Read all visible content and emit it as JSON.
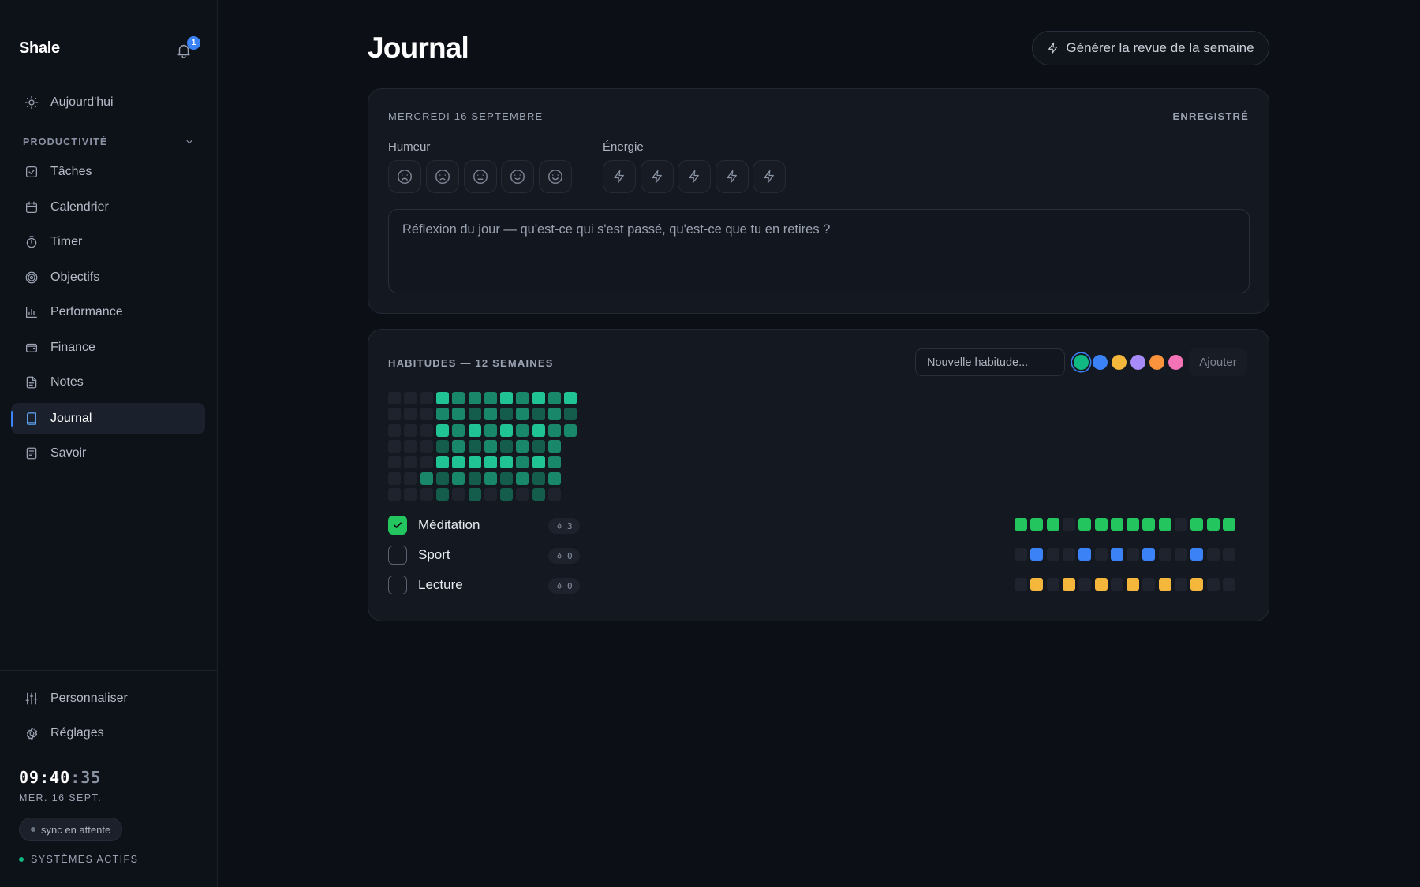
{
  "app": {
    "brand": "Shale",
    "notification_count": "1"
  },
  "sidebar": {
    "today": "Aujourd'hui",
    "section": "PRODUCTIVITÉ",
    "items": [
      {
        "label": "Tâches",
        "icon": "check-square-icon"
      },
      {
        "label": "Calendrier",
        "icon": "calendar-icon"
      },
      {
        "label": "Timer",
        "icon": "timer-icon"
      },
      {
        "label": "Objectifs",
        "icon": "target-icon"
      },
      {
        "label": "Performance",
        "icon": "bar-chart-icon"
      },
      {
        "label": "Finance",
        "icon": "wallet-icon"
      },
      {
        "label": "Notes",
        "icon": "file-text-icon"
      },
      {
        "label": "Journal",
        "icon": "book-icon",
        "active": true
      },
      {
        "label": "Savoir",
        "icon": "book-open-icon"
      }
    ],
    "customize": "Personnaliser",
    "settings": "Réglages",
    "clock_hm": "09:40",
    "clock_sec": ":35",
    "clock_date": "MER. 16 SEPT.",
    "sync": "sync en attente",
    "systems": "SYSTÈMES ACTIFS"
  },
  "main": {
    "title": "Journal",
    "generate_button": "Générer la revue de la semaine",
    "entry": {
      "date": "MERCREDI 16 SEPTEMBRE",
      "status": "ENREGISTRÉ",
      "mood_label": "Humeur",
      "energy_label": "Énergie",
      "reflection_placeholder": "Réflexion du jour — qu'est-ce qui s'est passé, qu'est-ce que tu en retires ?"
    },
    "habits": {
      "title": "HABITUDES — 12 SEMAINES",
      "new_placeholder": "Nouvelle habitude...",
      "add_button": "Ajouter",
      "colors": [
        "#10b981",
        "#3b82f6",
        "#f5b73b",
        "#a78bfa",
        "#fb923c",
        "#f472b6"
      ],
      "list": [
        {
          "name": "Méditation",
          "done": true,
          "streak": "3",
          "color": "#22c55e",
          "history": [
            1,
            1,
            1,
            0,
            1,
            1,
            1,
            1,
            1,
            1,
            0,
            1,
            1,
            1
          ]
        },
        {
          "name": "Sport",
          "done": false,
          "streak": "0",
          "color": "#3b82f6",
          "history": [
            0,
            1,
            0,
            0,
            1,
            0,
            1,
            0,
            1,
            0,
            0,
            1,
            0,
            0
          ]
        },
        {
          "name": "Lecture",
          "done": false,
          "streak": "0",
          "color": "#f5b73b",
          "history": [
            0,
            1,
            0,
            1,
            0,
            1,
            0,
            1,
            0,
            1,
            0,
            1,
            0,
            0
          ]
        }
      ],
      "heatmap": [
        [
          0,
          0,
          0,
          3,
          2,
          2,
          2,
          3,
          2,
          3,
          2,
          3
        ],
        [
          0,
          0,
          0,
          2,
          2,
          1,
          2,
          1,
          2,
          1,
          2,
          1
        ],
        [
          0,
          0,
          0,
          3,
          2,
          3,
          2,
          3,
          2,
          3,
          2,
          2
        ],
        [
          0,
          0,
          0,
          1,
          2,
          1,
          2,
          1,
          2,
          1,
          2,
          -1
        ],
        [
          0,
          0,
          0,
          3,
          3,
          3,
          3,
          3,
          2,
          3,
          2,
          -1
        ],
        [
          0,
          0,
          2,
          1,
          2,
          1,
          2,
          1,
          2,
          1,
          2,
          -1
        ],
        [
          0,
          0,
          0,
          1,
          0,
          1,
          0,
          1,
          0,
          1,
          0,
          -1
        ]
      ]
    }
  }
}
